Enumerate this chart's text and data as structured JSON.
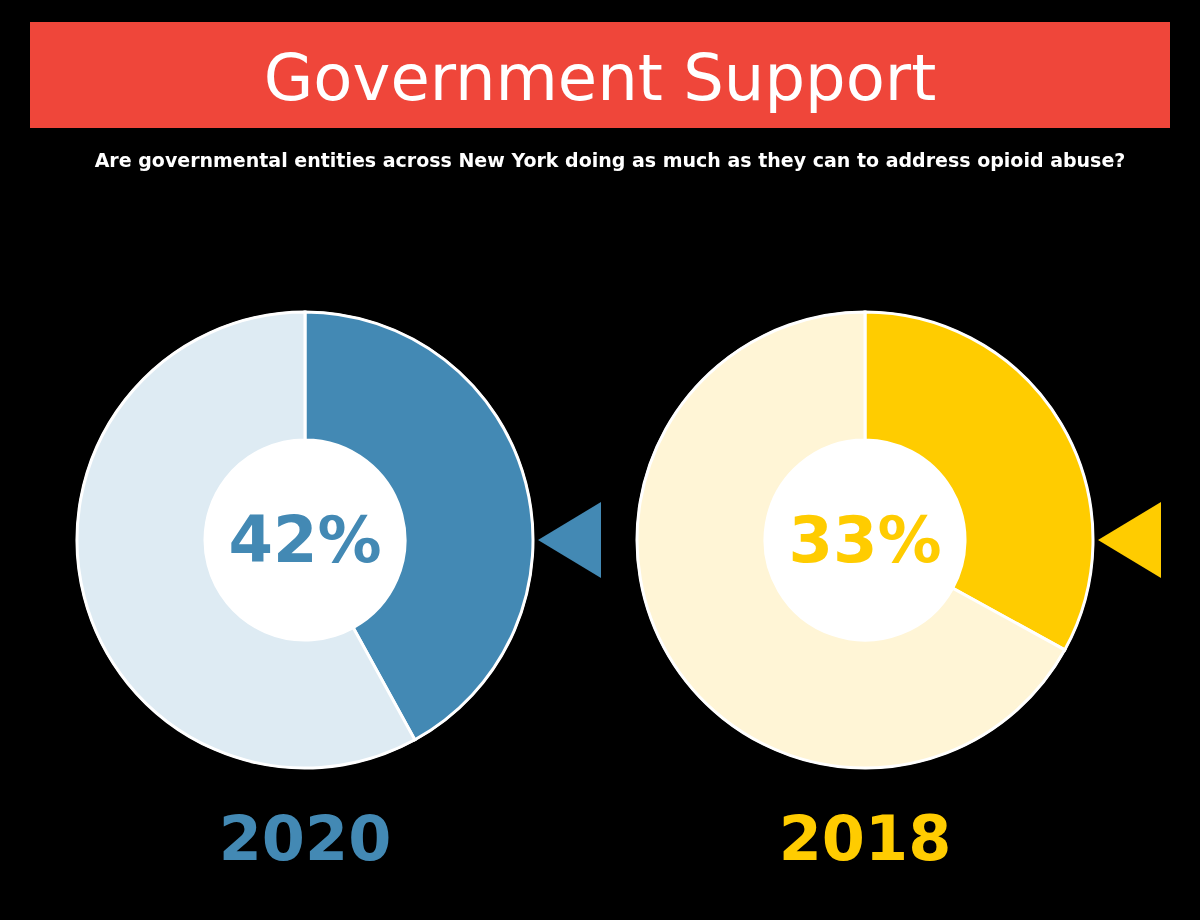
{
  "chart_data": [
    {
      "type": "donut",
      "title": "Government Support",
      "subtitle": "Are governmental entities across New York doing as much as they can to address opioid abuse?",
      "categories": [
        null,
        null
      ],
      "values": [
        42,
        58
      ],
      "colors": [
        "#4389b4",
        "#deebf3"
      ],
      "annotations": [
        "42%"
      ],
      "xlabel": "2020"
    },
    {
      "type": "donut",
      "categories": [
        null,
        null
      ],
      "values": [
        33,
        67
      ],
      "colors": [
        "#ffcc00",
        "#fff5d6"
      ],
      "annotations": [
        "33%"
      ],
      "xlabel": "2018"
    }
  ]
}
